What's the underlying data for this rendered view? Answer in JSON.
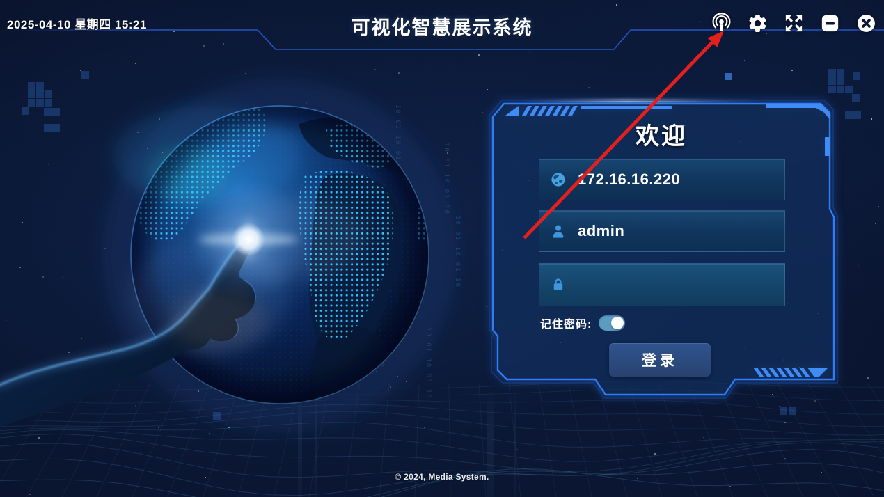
{
  "topbar": {
    "datetime": "2025-04-10  星期四  15:21",
    "title": "可视化智慧展示系统",
    "icons": [
      {
        "name": "broadcast-icon"
      },
      {
        "name": "settings-icon"
      },
      {
        "name": "fullscreen-icon"
      },
      {
        "name": "minimize-icon"
      },
      {
        "name": "close-icon"
      }
    ]
  },
  "login": {
    "welcome": "欢迎",
    "ip": {
      "icon": "globe-icon",
      "value": "172.16.16.220"
    },
    "username": {
      "icon": "user-icon",
      "value": "admin"
    },
    "password": {
      "icon": "lock-icon",
      "value": ""
    },
    "remember_label": "记住密码:",
    "remember_state": "on",
    "login_label": "登录"
  },
  "footer": {
    "copyright": "© 2024, Media System."
  },
  "decor": {
    "binary": "10 01 10 01 10"
  },
  "colors": {
    "accent": "#2f7df6",
    "panel_fill": "rgba(11,29,60,0.5)",
    "field_bg": "#10355c",
    "toggle_track": "#5b9cc2",
    "button": "#2b4d87",
    "arrow_red": "#e3201b",
    "icon_blue": "#3d96dd"
  }
}
